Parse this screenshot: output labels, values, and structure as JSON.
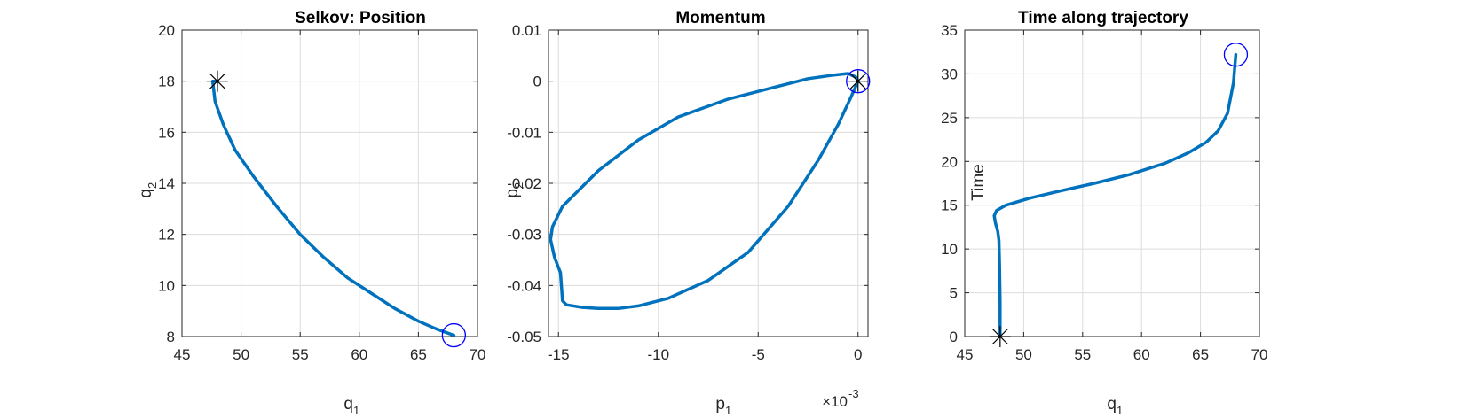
{
  "chart_data": [
    {
      "type": "line",
      "title": "Selkov: Position",
      "xlabel": "q",
      "xlabel_sub": "1",
      "ylabel": "q",
      "ylabel_sub": "2",
      "xlim": [
        45,
        70
      ],
      "ylim": [
        8,
        20
      ],
      "xticks": [
        45,
        50,
        55,
        60,
        65,
        70
      ],
      "yticks": [
        8,
        10,
        12,
        14,
        16,
        18,
        20
      ],
      "grid": true,
      "series": [
        {
          "x": [
            48.0,
            47.6,
            47.8,
            48.5,
            49.5,
            51.0,
            53.0,
            55.0,
            57.0,
            59.0,
            61.0,
            63.0,
            65.0,
            66.5,
            68.0
          ],
          "y": [
            18.0,
            18.0,
            17.2,
            16.3,
            15.3,
            14.3,
            13.1,
            12.0,
            11.1,
            10.3,
            9.7,
            9.1,
            8.6,
            8.3,
            8.05
          ],
          "color": "#0072BD"
        }
      ],
      "start_marker": {
        "x": 48.0,
        "y": 18.0,
        "symbol": "asterisk"
      },
      "end_marker": {
        "x": 68.0,
        "y": 8.05,
        "symbol": "circle"
      }
    },
    {
      "type": "line",
      "title": "Momentum",
      "xlabel": "p",
      "xlabel_sub": "1",
      "ylabel": "p",
      "ylabel_sub": "2",
      "x_exponent_base": "×10",
      "x_exponent_power": "-3",
      "xlim": [
        -0.0155,
        0.0005
      ],
      "ylim": [
        -0.05,
        0.01
      ],
      "xticks": [
        -0.015,
        -0.01,
        -0.005,
        0
      ],
      "xtick_labels": [
        "-15",
        "-10",
        "-5",
        "0"
      ],
      "yticks": [
        -0.05,
        -0.04,
        -0.03,
        -0.02,
        -0.01,
        0,
        0.01
      ],
      "ytick_labels": [
        "-0.05",
        "-0.04",
        "-0.03",
        "-0.02",
        "-0.01",
        "0",
        "0.01"
      ],
      "grid": true,
      "series": [
        {
          "x": [
            0.0,
            -0.0004,
            -0.001,
            -0.002,
            -0.0035,
            -0.0055,
            -0.0075,
            -0.0095,
            -0.011,
            -0.012,
            -0.013,
            -0.0138,
            -0.0146,
            -0.0148,
            -0.0149,
            -0.0152,
            -0.0154,
            -0.0153,
            -0.0148,
            -0.013,
            -0.011,
            -0.009,
            -0.0065,
            -0.0042,
            -0.0025,
            -0.0012,
            -0.0005,
            -0.0001,
            0.0
          ],
          "y": [
            0.0,
            -0.0035,
            -0.0085,
            -0.0155,
            -0.0245,
            -0.0335,
            -0.039,
            -0.0425,
            -0.044,
            -0.0445,
            -0.0445,
            -0.0443,
            -0.0438,
            -0.043,
            -0.0375,
            -0.0345,
            -0.031,
            -0.0285,
            -0.0245,
            -0.0175,
            -0.0115,
            -0.007,
            -0.0035,
            -0.0012,
            0.0005,
            0.0012,
            0.0015,
            0.0008,
            0.0
          ],
          "color": "#0072BD"
        }
      ],
      "start_marker": {
        "x": 0.0,
        "y": 0.0,
        "symbol": "asterisk"
      },
      "end_marker": {
        "x": 0.0,
        "y": 0.0,
        "symbol": "circle"
      }
    },
    {
      "type": "line",
      "title": "Time along trajectory",
      "xlabel": "q",
      "xlabel_sub": "1",
      "ylabel": "Time",
      "xlim": [
        45,
        70
      ],
      "ylim": [
        0,
        35
      ],
      "xticks": [
        45,
        50,
        55,
        60,
        65,
        70
      ],
      "yticks": [
        0,
        5,
        10,
        15,
        20,
        25,
        30,
        35
      ],
      "grid": true,
      "series": [
        {
          "x": [
            48.0,
            48.0,
            47.95,
            47.9,
            47.8,
            47.6,
            47.5,
            47.7,
            48.5,
            50.5,
            53.0,
            56.0,
            59.0,
            62.0,
            64.0,
            65.5,
            66.5,
            67.3,
            67.8,
            68.0
          ],
          "y": [
            0.0,
            4.0,
            8.0,
            11.0,
            12.0,
            13.0,
            13.8,
            14.4,
            15.0,
            15.8,
            16.6,
            17.5,
            18.5,
            19.8,
            21.0,
            22.2,
            23.5,
            25.5,
            29.0,
            32.2
          ],
          "color": "#0072BD"
        }
      ],
      "start_marker": {
        "x": 48.0,
        "y": 0.0,
        "symbol": "asterisk"
      },
      "end_marker": {
        "x": 68.0,
        "y": 32.2,
        "symbol": "circle"
      }
    }
  ]
}
